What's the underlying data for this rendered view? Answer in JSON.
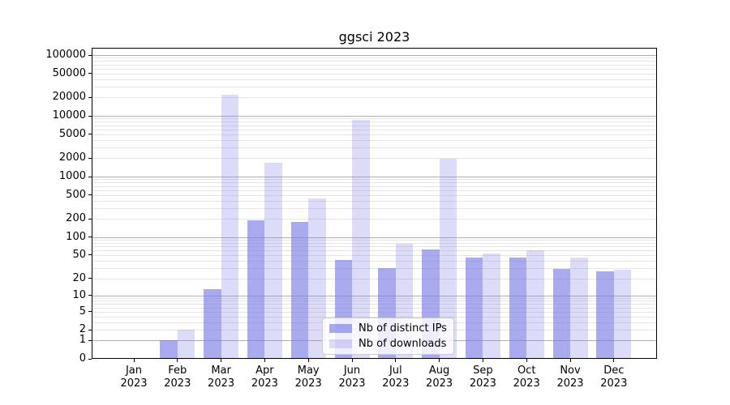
{
  "title": "ggsci 2023",
  "chart_data": {
    "type": "bar",
    "title": "ggsci 2023",
    "categories": [
      "Jan 2023",
      "Feb 2023",
      "Mar 2023",
      "Apr 2023",
      "May 2023",
      "Jun 2023",
      "Jul 2023",
      "Aug 2023",
      "Sep 2023",
      "Oct 2023",
      "Nov 2023",
      "Dec 2023"
    ],
    "series": [
      {
        "name": "Nb of distinct IPs",
        "color": "rgba(120,120,230,0.63)",
        "values": [
          0,
          1,
          13,
          190,
          180,
          41,
          30,
          63,
          46,
          46,
          29,
          27
        ]
      },
      {
        "name": "Nb of downloads",
        "color": "rgba(120,120,230,0.26)",
        "values": [
          0,
          2,
          22000,
          1700,
          430,
          8600,
          77,
          1950,
          53,
          60,
          46,
          28
        ]
      }
    ],
    "y_scale": "log1p",
    "y_min": 0,
    "y_max": 100000,
    "y_tick_values": [
      0,
      1,
      2,
      5,
      10,
      20,
      50,
      100,
      200,
      500,
      1000,
      2000,
      5000,
      10000,
      20000,
      50000,
      100000
    ],
    "y_tick_labels": [
      "0",
      "1",
      "2",
      "5",
      "10",
      "20",
      "50",
      "100",
      "200",
      "500",
      "1000",
      "2000",
      "5000",
      "10000",
      "20000",
      "50000",
      "100000"
    ],
    "grid": true,
    "legend_position": "lower center"
  },
  "legend": {
    "items": [
      {
        "label": "Nb of distinct IPs"
      },
      {
        "label": "Nb of downloads"
      }
    ]
  },
  "colors": {
    "background": "#ffffff",
    "bar_base": "#7878e6",
    "major_grid": "#b0b0b0",
    "minor_grid": "#e5e5e5",
    "spine": "#000000",
    "text": "#000000",
    "legend_border": "#cccccc"
  }
}
